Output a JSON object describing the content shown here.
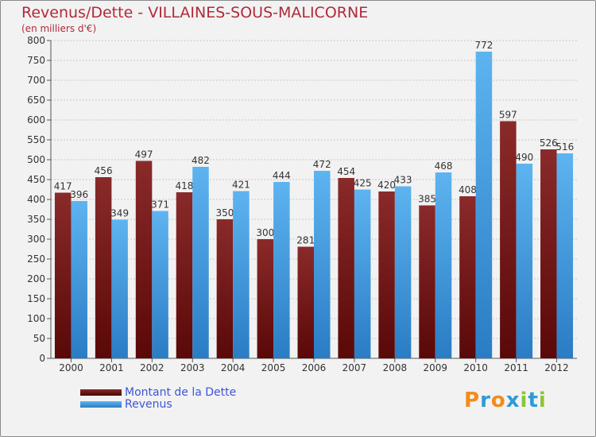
{
  "header": {
    "title": "Revenus/Dette - VILLAINES-SOUS-MALICORNE",
    "subtitle": "(en milliers d'€)"
  },
  "chart_data": {
    "type": "bar",
    "title": "Revenus/Dette - VILLAINES-SOUS-MALICORNE",
    "ylabel": "(en milliers d'€)",
    "xlabel": "",
    "ylim": [
      0,
      800
    ],
    "yticks": [
      0,
      50,
      100,
      150,
      200,
      250,
      300,
      350,
      400,
      450,
      500,
      550,
      600,
      650,
      700,
      750,
      800
    ],
    "grid": true,
    "legend_position": "bottom-left",
    "categories": [
      "2000",
      "2001",
      "2002",
      "2003",
      "2004",
      "2005",
      "2006",
      "2007",
      "2008",
      "2009",
      "2010",
      "2011",
      "2012"
    ],
    "series": [
      {
        "name": "Montant de la Dette",
        "color": "#6e1414",
        "values": [
          417,
          456,
          497,
          418,
          350,
          300,
          281,
          454,
          420,
          385,
          408,
          597,
          526
        ]
      },
      {
        "name": "Revenus",
        "color": "#4aa6e8",
        "values": [
          396,
          349,
          371,
          482,
          421,
          444,
          472,
          425,
          433,
          468,
          772,
          490,
          516
        ]
      }
    ]
  },
  "logo": {
    "letters": [
      "P",
      "r",
      "o",
      "x",
      "i",
      "t",
      "i"
    ],
    "colors": [
      "#f28c1a",
      "#2e9ad6",
      "#f28c1a",
      "#2e9ad6",
      "#8cc43a",
      "#2e9ad6",
      "#8cc43a"
    ]
  }
}
